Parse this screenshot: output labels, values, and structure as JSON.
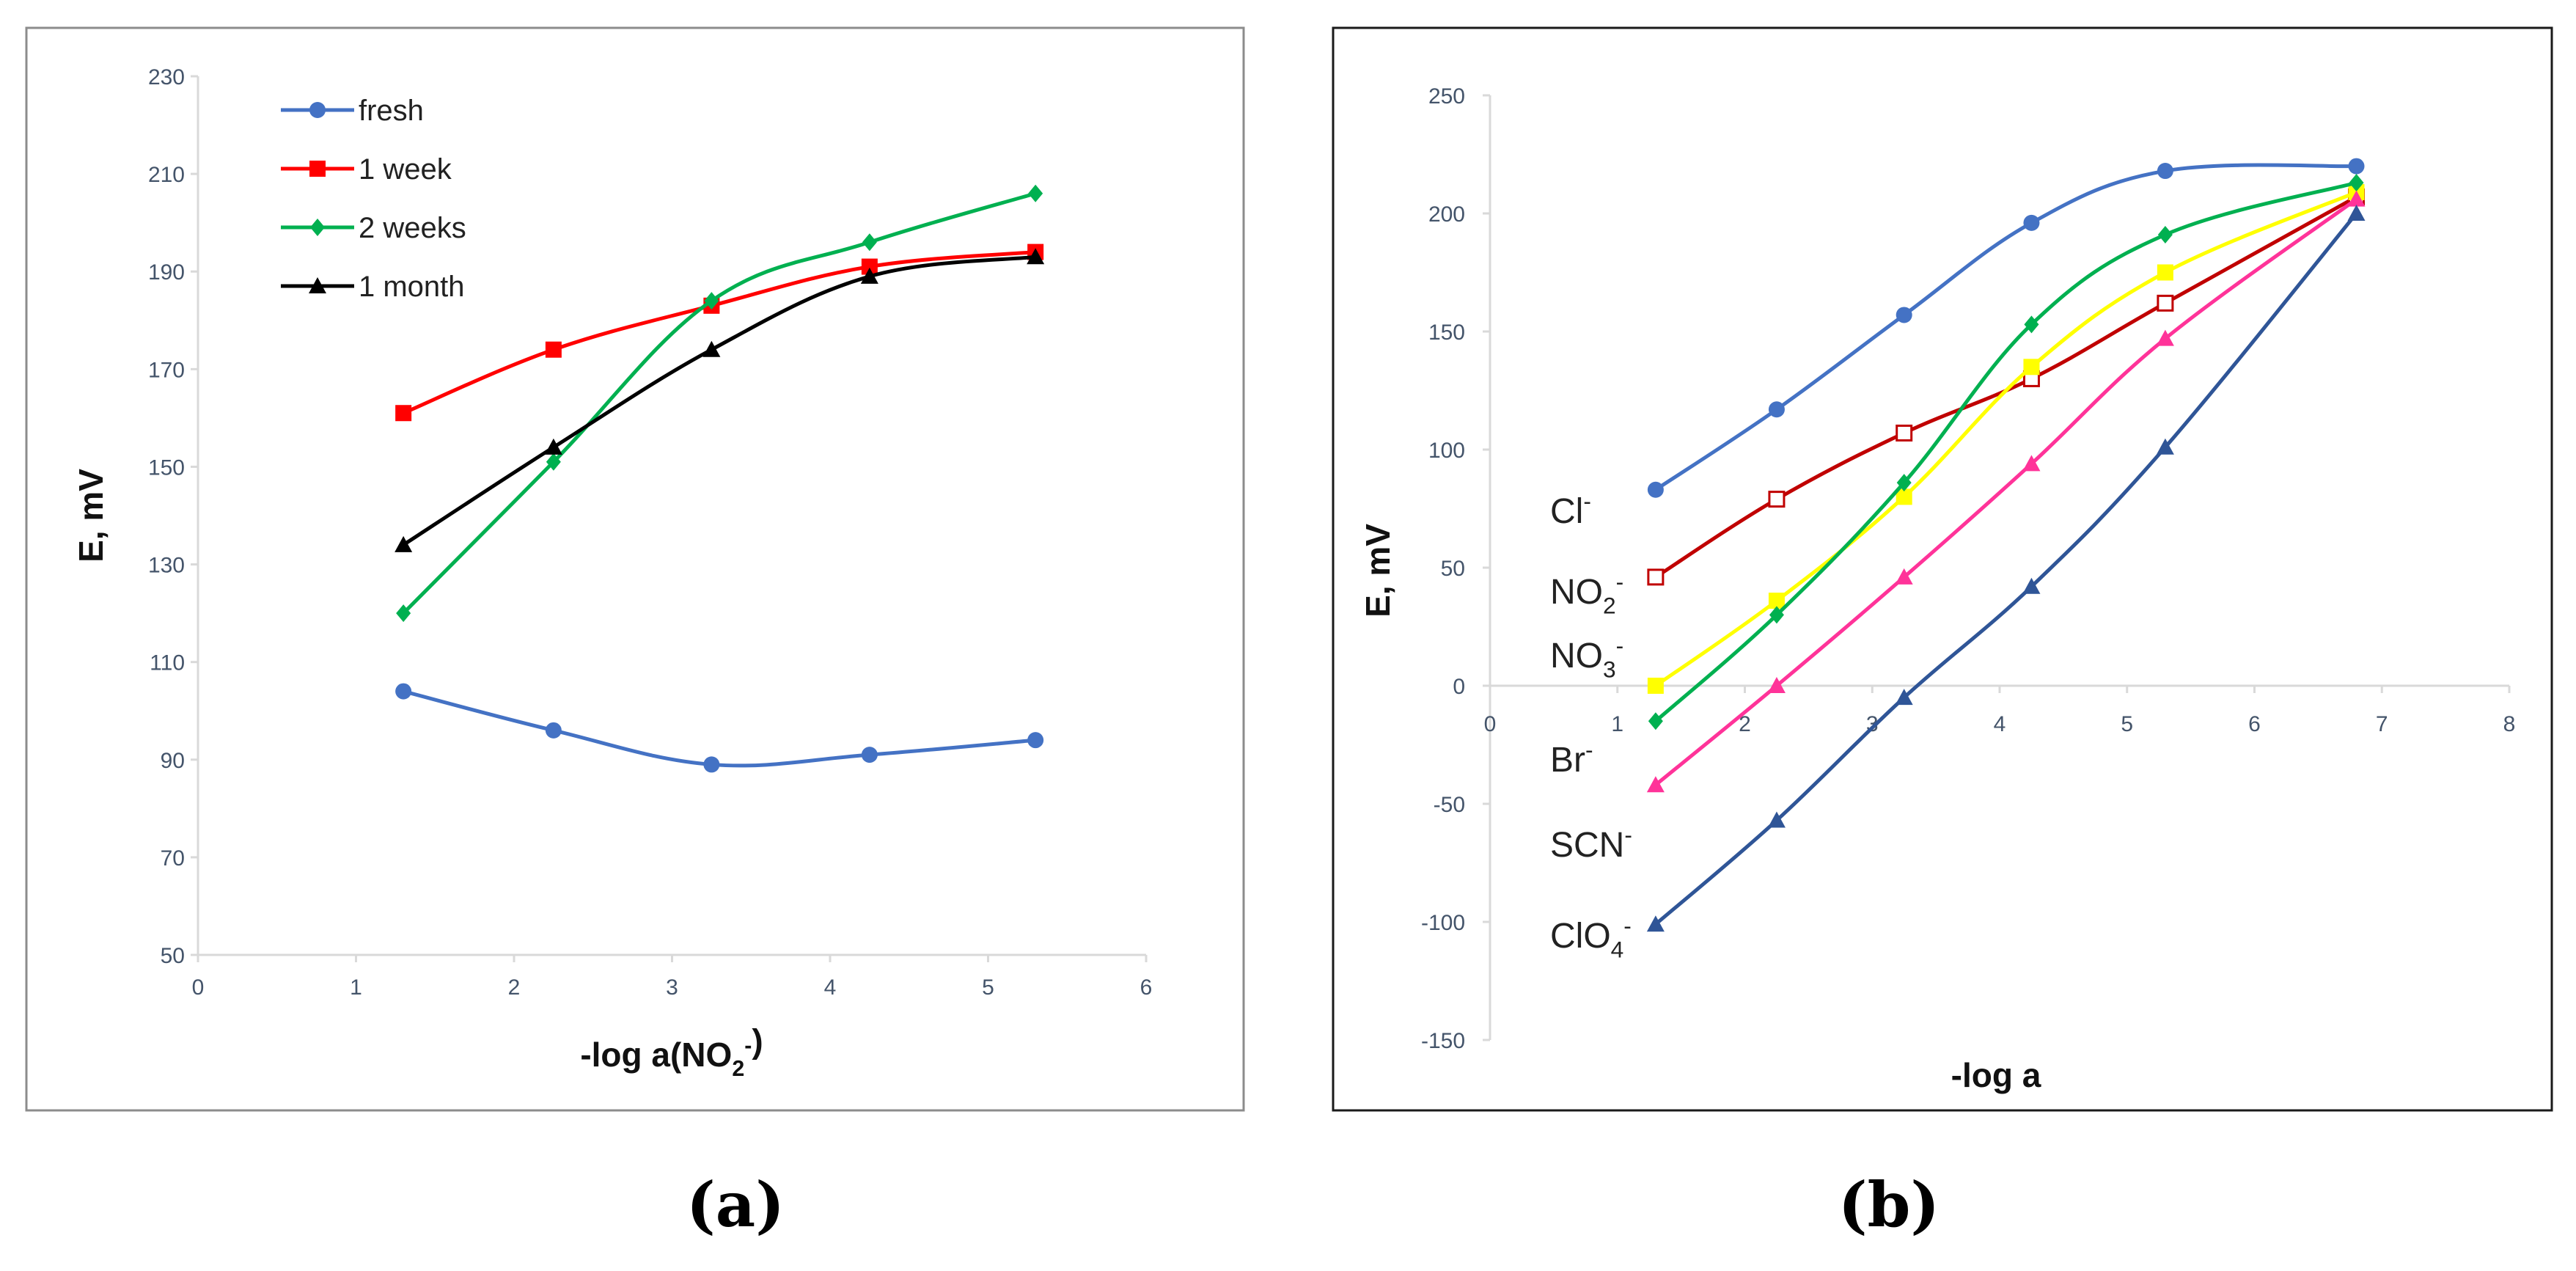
{
  "chart_data": [
    {
      "type": "line",
      "xlabel": "-log a(NO",
      "xlabel_sub": "2",
      "xlabel_sup": "-",
      "xlabel_end": ")",
      "ylabel": "E, mV",
      "xlim": [
        0,
        6
      ],
      "ylim": [
        50,
        230
      ],
      "xticks": [
        0,
        1,
        2,
        3,
        4,
        5,
        6
      ],
      "yticks": [
        50,
        70,
        90,
        110,
        130,
        150,
        170,
        190,
        210,
        230
      ],
      "legend_position": "top-left",
      "caption": "(a)",
      "series": [
        {
          "name": "fresh",
          "color": "#4472c4",
          "marker": "circle",
          "x": [
            1.3,
            2.25,
            3.25,
            4.25,
            5.3
          ],
          "y": [
            104,
            96,
            89,
            91,
            94
          ]
        },
        {
          "name": "1 week",
          "color": "#ff0000",
          "marker": "square",
          "x": [
            1.3,
            2.25,
            3.25,
            4.25,
            5.3
          ],
          "y": [
            161,
            174,
            183,
            191,
            194
          ]
        },
        {
          "name": "2 weeks",
          "color": "#00b050",
          "marker": "diamond",
          "x": [
            1.3,
            2.25,
            3.25,
            4.25,
            5.3
          ],
          "y": [
            120,
            151,
            184,
            196,
            206
          ]
        },
        {
          "name": "1 month",
          "color": "#000000",
          "marker": "triangle",
          "x": [
            1.3,
            2.25,
            3.25,
            4.25,
            5.3
          ],
          "y": [
            134,
            154,
            174,
            189,
            193
          ]
        }
      ]
    },
    {
      "type": "line",
      "xlabel": "-log a",
      "ylabel": "E, mV",
      "xlim": [
        0,
        8
      ],
      "ylim": [
        -150,
        250
      ],
      "xticks": [
        0,
        1,
        2,
        3,
        4,
        5,
        6,
        7,
        8
      ],
      "yticks": [
        -150,
        -100,
        -50,
        0,
        50,
        100,
        150,
        200,
        250
      ],
      "caption": "(b)",
      "series": [
        {
          "name": "Cl",
          "label_base": "Cl",
          "label_sub": "",
          "label_sup": "-",
          "color": "#4472c4",
          "marker": "circle",
          "x": [
            1.3,
            2.25,
            3.25,
            4.25,
            5.3,
            6.8
          ],
          "y": [
            83,
            117,
            157,
            196,
            218,
            220
          ]
        },
        {
          "name": "NO2",
          "label_base": "NO",
          "label_sub": "2",
          "label_sup": "-",
          "color": "#c00000",
          "marker": "open-square",
          "x": [
            1.3,
            2.25,
            3.25,
            4.25,
            5.3,
            6.8
          ],
          "y": [
            46,
            79,
            107,
            130,
            162,
            207
          ]
        },
        {
          "name": "NO3",
          "label_base": "NO",
          "label_sub": "3",
          "label_sup": "-",
          "color": "#ffff00",
          "marker": "square",
          "x": [
            1.3,
            2.25,
            3.25,
            4.25,
            5.3,
            6.8
          ],
          "y": [
            0,
            36,
            80,
            135,
            175,
            209
          ]
        },
        {
          "name": "Br",
          "label_base": "Br",
          "label_sub": "",
          "label_sup": "-",
          "color": "#00b050",
          "marker": "diamond",
          "x": [
            1.3,
            2.25,
            3.25,
            4.25,
            5.3,
            6.8
          ],
          "y": [
            -15,
            30,
            86,
            153,
            191,
            213
          ]
        },
        {
          "name": "SCN",
          "label_base": "SCN",
          "label_sub": "",
          "label_sup": "-",
          "color": "#ff3399",
          "marker": "triangle",
          "x": [
            1.3,
            2.25,
            3.25,
            4.25,
            5.3,
            6.8
          ],
          "y": [
            -42,
            0,
            46,
            94,
            147,
            206
          ]
        },
        {
          "name": "ClO4",
          "label_base": "ClO",
          "label_sub": "4",
          "label_sup": "-",
          "color": "#2f5597",
          "marker": "triangle",
          "x": [
            1.3,
            2.25,
            3.25,
            4.25,
            5.3,
            6.8
          ],
          "y": [
            -101,
            -57,
            -5,
            42,
            101,
            200
          ]
        }
      ]
    }
  ]
}
